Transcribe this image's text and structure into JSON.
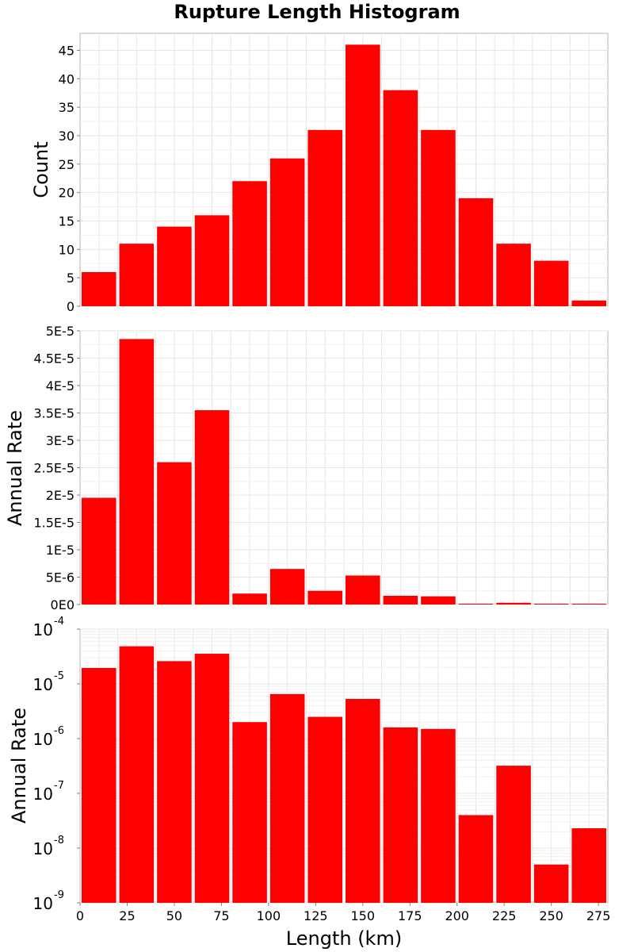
{
  "chart_data": [
    {
      "type": "bar",
      "title": "Rupture Length Histogram",
      "ylabel": "Count",
      "x": [
        10,
        30,
        50,
        70,
        90,
        110,
        130,
        150,
        170,
        190,
        210,
        230,
        250,
        270
      ],
      "values": [
        6,
        11,
        14,
        16,
        22,
        26,
        31,
        46,
        38,
        31,
        19,
        11,
        8,
        1
      ],
      "bar_width": 20,
      "xlim": [
        0,
        280
      ],
      "ylim": [
        0,
        48
      ],
      "yticks": [
        0,
        5,
        10,
        15,
        20,
        25,
        30,
        35,
        40,
        45
      ],
      "ytick_labels": [
        "0",
        "5",
        "10",
        "15",
        "20",
        "25",
        "30",
        "35",
        "40",
        "45"
      ],
      "color": "#ff0000",
      "grid": true
    },
    {
      "type": "bar",
      "ylabel": "Annual Rate",
      "x": [
        10,
        30,
        50,
        70,
        90,
        110,
        130,
        150,
        170,
        190,
        210,
        230,
        250,
        270
      ],
      "values": [
        1.95e-05,
        4.85e-05,
        2.6e-05,
        3.55e-05,
        2e-06,
        6.5e-06,
        2.5e-06,
        5.3e-06,
        1.6e-06,
        1.5e-06,
        4e-08,
        3.2e-07,
        5e-09,
        2.3e-08
      ],
      "bar_width": 20,
      "xlim": [
        0,
        280
      ],
      "ylim": [
        0,
        5e-05
      ],
      "yticks": [
        0,
        5e-06,
        1e-05,
        1.5e-05,
        2e-05,
        2.5e-05,
        3e-05,
        3.5e-05,
        4e-05,
        4.5e-05,
        5e-05
      ],
      "ytick_labels": [
        "0E0",
        "5E-6",
        "1E-5",
        "1.5E-5",
        "2E-5",
        "2.5E-5",
        "3E-5",
        "3.5E-5",
        "4E-5",
        "4.5E-5",
        "5E-5"
      ],
      "color": "#ff0000",
      "grid": true
    },
    {
      "type": "bar",
      "ylabel": "Annual Rate",
      "xlabel": "Length (km)",
      "x": [
        10,
        30,
        50,
        70,
        90,
        110,
        130,
        150,
        170,
        190,
        210,
        230,
        250,
        270
      ],
      "values": [
        1.95e-05,
        4.85e-05,
        2.6e-05,
        3.55e-05,
        2e-06,
        6.5e-06,
        2.5e-06,
        5.3e-06,
        1.6e-06,
        1.5e-06,
        4e-08,
        3.2e-07,
        5e-09,
        2.3e-08
      ],
      "bar_width": 20,
      "xlim": [
        0,
        280
      ],
      "ylim": [
        1e-09,
        0.0001
      ],
      "yscale": "log",
      "ytick_exponents": [
        "-9",
        "-8",
        "-7",
        "-6",
        "-5",
        "-4"
      ],
      "ytick_base": "10",
      "xticks": [
        0,
        25,
        50,
        75,
        100,
        125,
        150,
        175,
        200,
        225,
        250,
        275
      ],
      "xtick_labels": [
        "0",
        "25",
        "50",
        "75",
        "100",
        "125",
        "150",
        "175",
        "200",
        "225",
        "250",
        "275"
      ],
      "color": "#ff0000",
      "grid": true
    }
  ]
}
